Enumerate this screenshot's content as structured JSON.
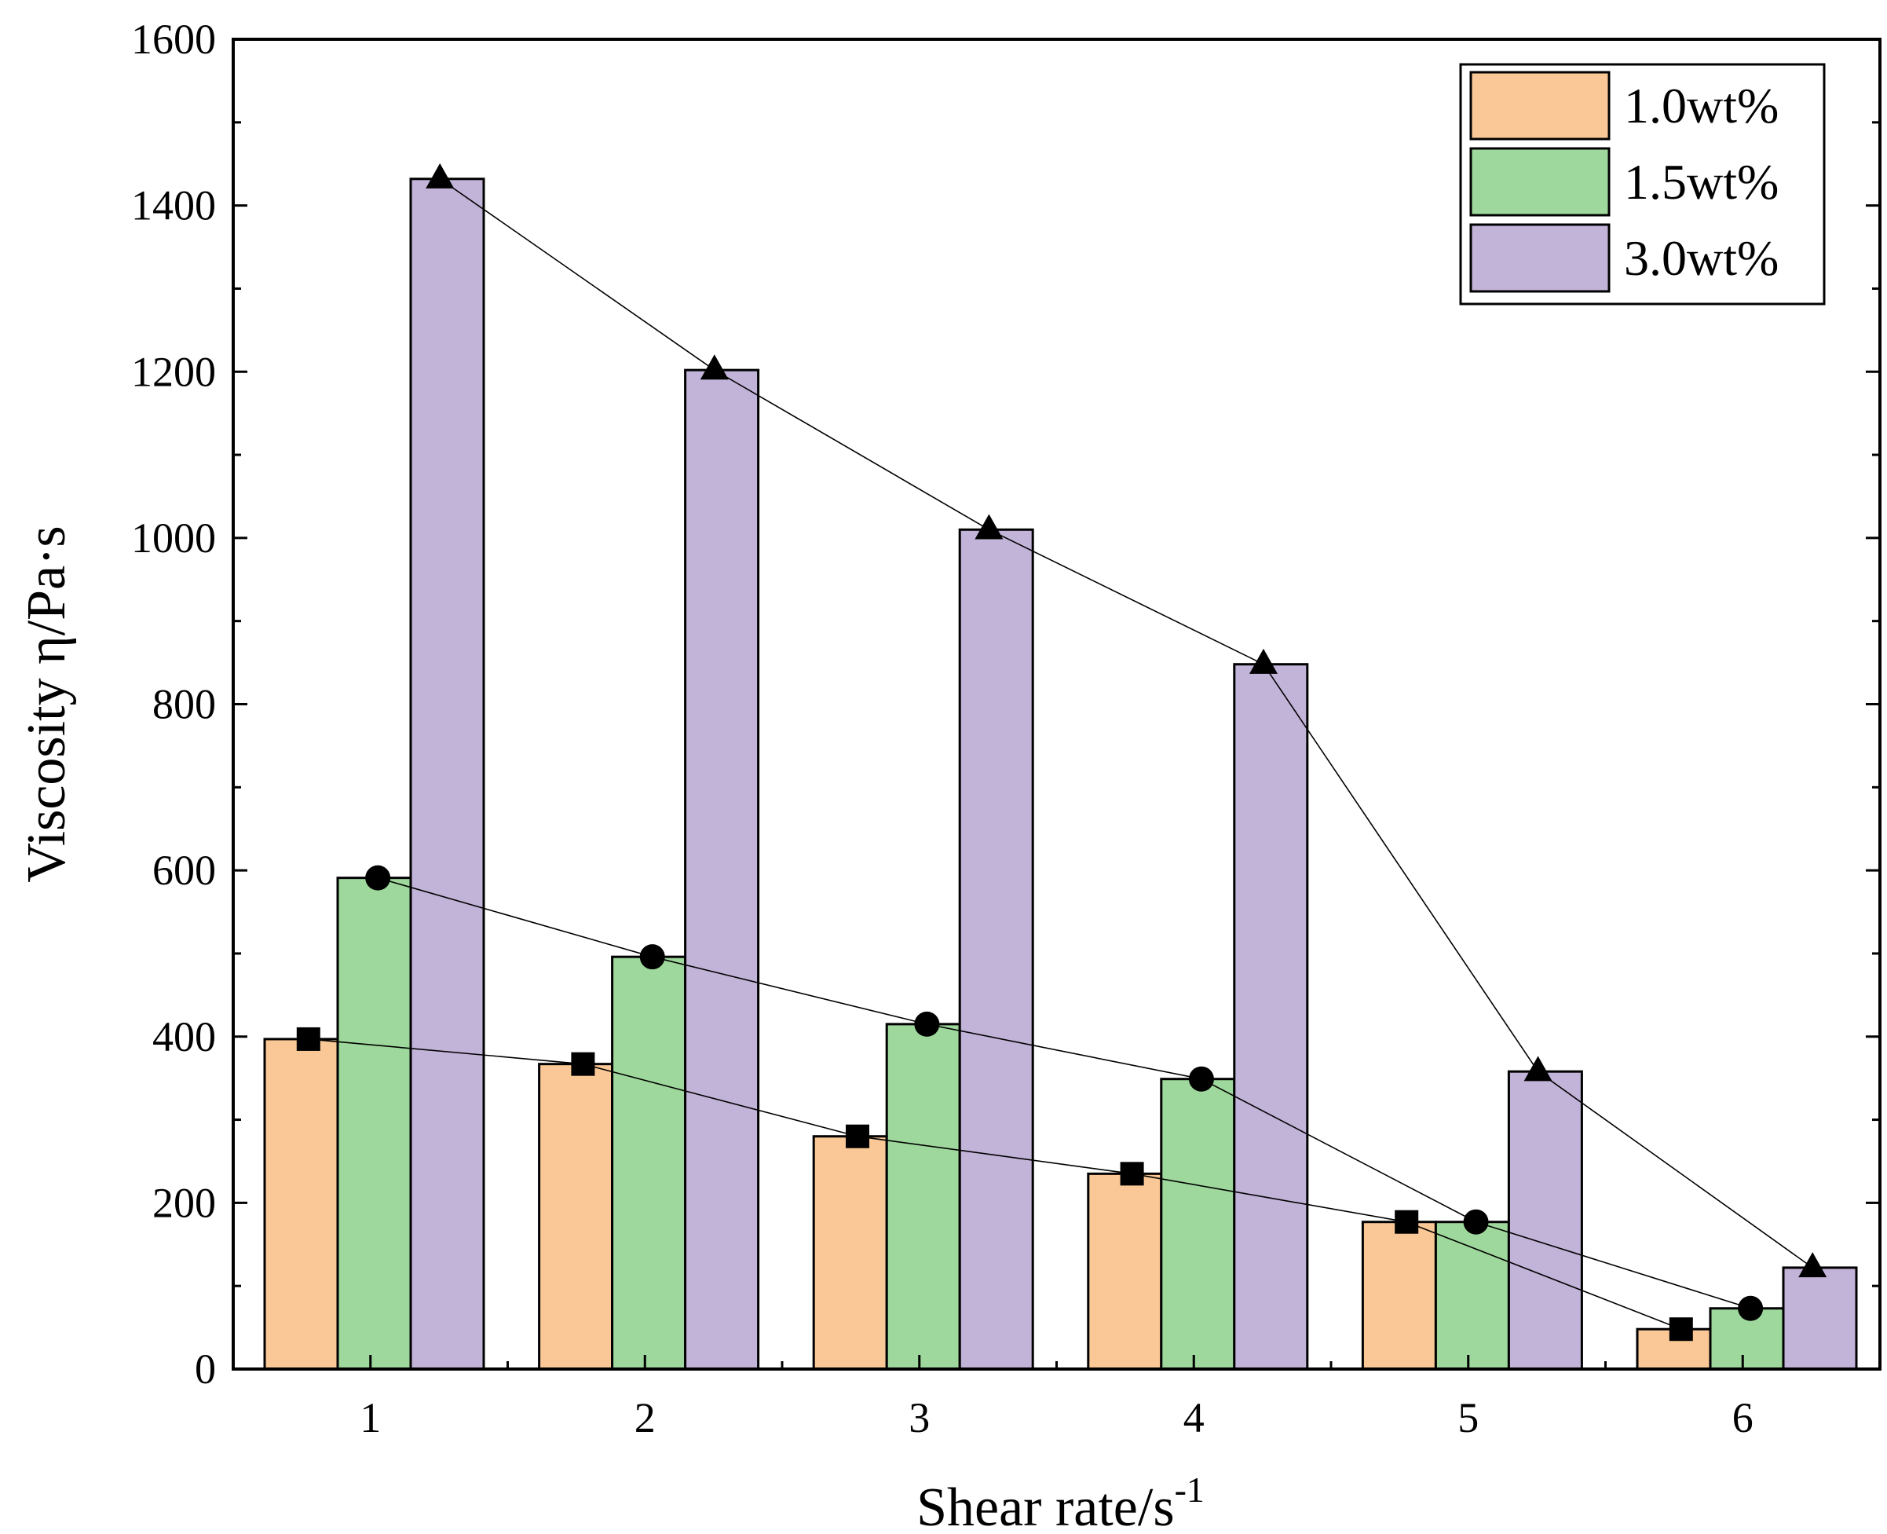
{
  "chart_data": {
    "type": "bar",
    "title": "",
    "xlabel": "Shear rate/s",
    "xlabel_superscript": "-1",
    "ylabel": "Viscosity η/Pa·s",
    "categories": [
      "1",
      "2",
      "3",
      "4",
      "5",
      "6"
    ],
    "ylim": [
      0,
      1600
    ],
    "yticks": [
      0,
      200,
      400,
      600,
      800,
      1000,
      1200,
      1400,
      1600
    ],
    "ytick_labels": [
      "0",
      "200",
      "400",
      "600",
      "800",
      "1000",
      "1200",
      "1400",
      "1600"
    ],
    "grid": false,
    "legend_position": "top-right",
    "overlay": "each series connected by a thin line with markers",
    "series": [
      {
        "name": "1.0wt%",
        "values": [
          397,
          367,
          280,
          235,
          177,
          48
        ],
        "color": "#FAC896",
        "marker": "square"
      },
      {
        "name": "1.5wt%",
        "values": [
          591,
          496,
          415,
          349,
          177,
          73
        ],
        "color": "#9ED89C",
        "marker": "circle"
      },
      {
        "name": "3.0wt%",
        "values": [
          1432,
          1202,
          1010,
          848,
          358,
          122
        ],
        "color": "#C2B3D8",
        "marker": "triangle"
      }
    ]
  }
}
